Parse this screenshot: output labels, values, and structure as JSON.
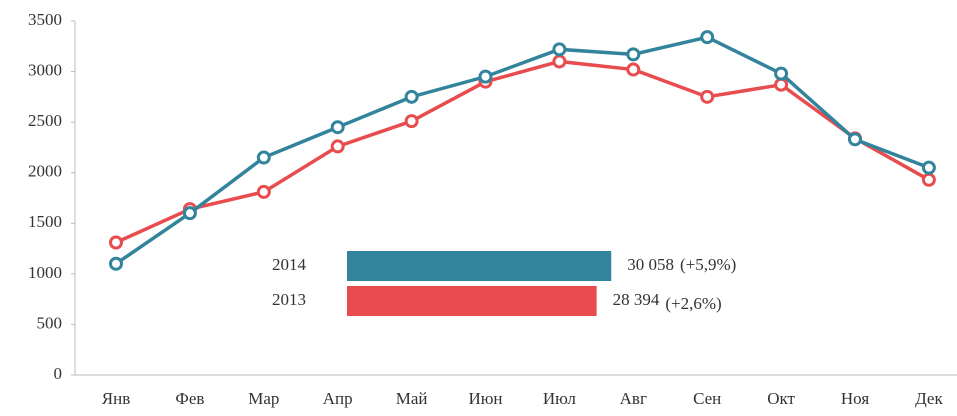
{
  "chart_data": [
    {
      "type": "line",
      "categories": [
        "Янв",
        "Фев",
        "Мар",
        "Апр",
        "Май",
        "Июн",
        "Июл",
        "Авг",
        "Сен",
        "Окт",
        "Ноя",
        "Дек"
      ],
      "series": [
        {
          "color": "#e84c4f",
          "values": [
            1310,
            1640,
            1810,
            2260,
            2510,
            2900,
            3100,
            3020,
            2750,
            2870,
            2340,
            1930
          ]
        },
        {
          "color": "#31849b",
          "values": [
            1100,
            1600,
            2150,
            2450,
            2750,
            2950,
            3220,
            3170,
            3340,
            2980,
            2330,
            2050
          ]
        }
      ],
      "ylim": [
        0,
        3500
      ],
      "yticks": [
        0,
        500,
        1000,
        1500,
        2000,
        2500,
        3000,
        3500
      ],
      "grid": false
    },
    {
      "type": "hbar",
      "categories": [
        "2014",
        "2013"
      ],
      "values": [
        30058,
        28394
      ],
      "value_labels": [
        "30 058",
        "28 394"
      ],
      "annotations": [
        "(+5,9%)",
        "(+2,6%)"
      ],
      "colors": [
        "#31849b",
        "#e84c4f"
      ]
    }
  ]
}
